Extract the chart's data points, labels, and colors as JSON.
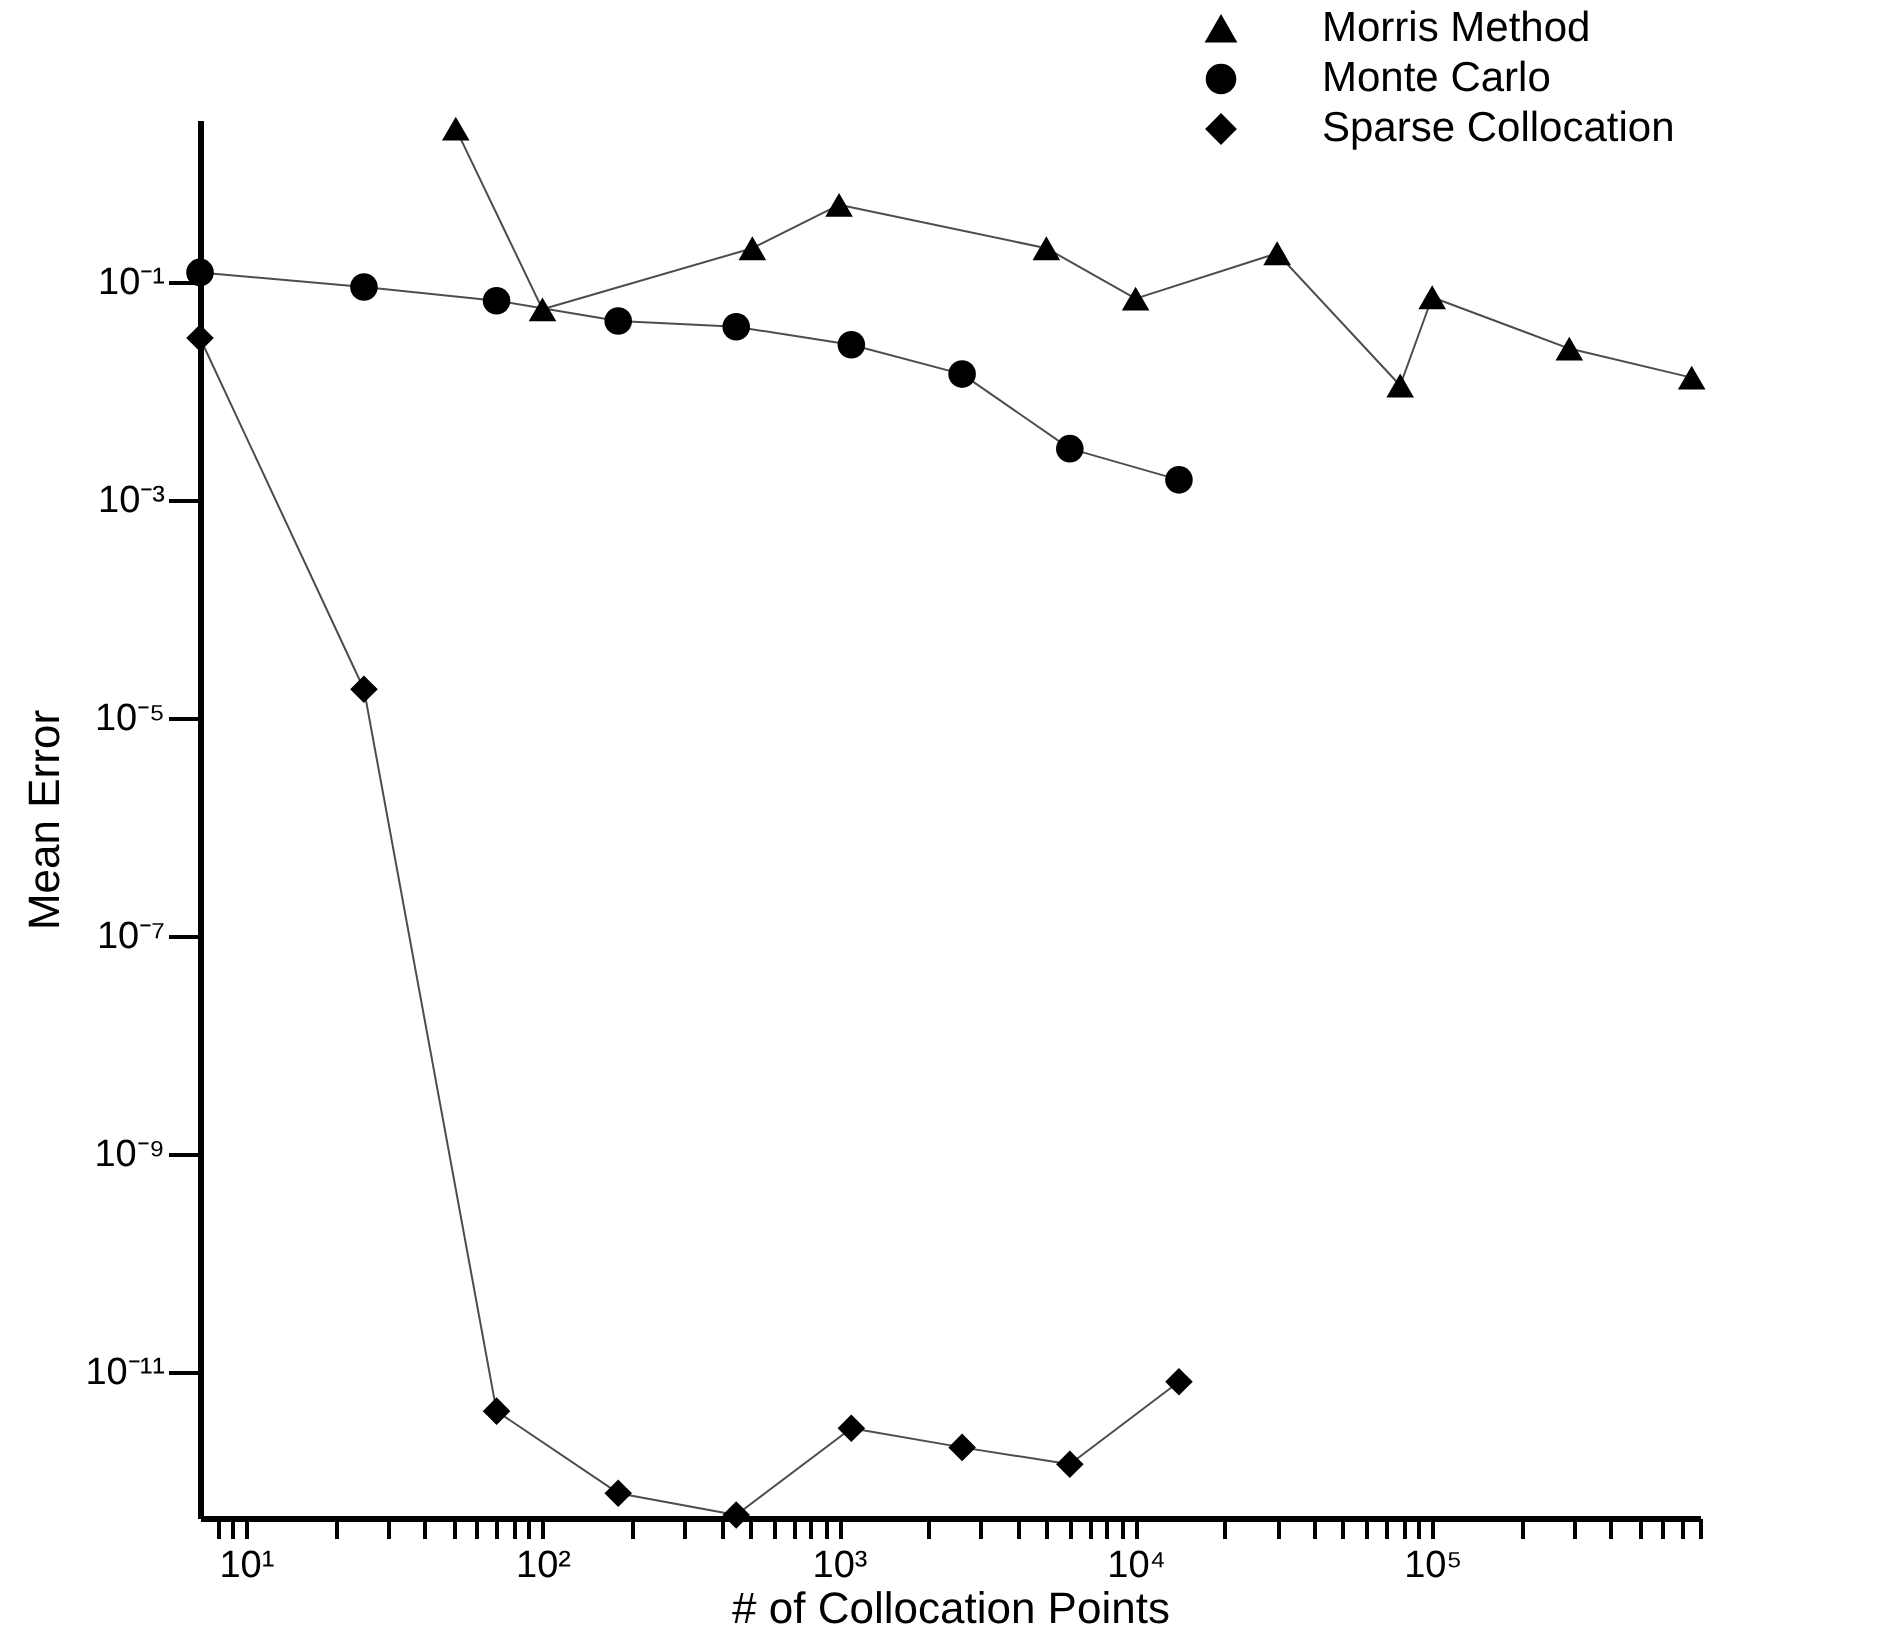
{
  "chart_data": {
    "type": "line",
    "xlabel": "# of Collocation Points",
    "ylabel": "Mean Error",
    "log": "xy",
    "legend": "top right",
    "grid": false,
    "line_style": "solid",
    "xlim": [
      7,
      800000
    ],
    "ylim": [
      4.5e-13,
      3
    ],
    "xticks": [
      {
        "value": 8,
        "label": null
      },
      {
        "value": 9,
        "label": null
      },
      {
        "value": 10,
        "label": "10¹"
      },
      {
        "value": 20,
        "label": null
      },
      {
        "value": 30,
        "label": null
      },
      {
        "value": 40,
        "label": null
      },
      {
        "value": 50,
        "label": null
      },
      {
        "value": 60,
        "label": null
      },
      {
        "value": 70,
        "label": null
      },
      {
        "value": 80,
        "label": null
      },
      {
        "value": 90,
        "label": null
      },
      {
        "value": 100,
        "label": "10²"
      },
      {
        "value": 200,
        "label": null
      },
      {
        "value": 300,
        "label": null
      },
      {
        "value": 400,
        "label": null
      },
      {
        "value": 500,
        "label": null
      },
      {
        "value": 600,
        "label": null
      },
      {
        "value": 700,
        "label": null
      },
      {
        "value": 800,
        "label": null
      },
      {
        "value": 900,
        "label": null
      },
      {
        "value": 1000,
        "label": "10³"
      },
      {
        "value": 2000,
        "label": null
      },
      {
        "value": 3000,
        "label": null
      },
      {
        "value": 4000,
        "label": null
      },
      {
        "value": 5000,
        "label": null
      },
      {
        "value": 6000,
        "label": null
      },
      {
        "value": 7000,
        "label": null
      },
      {
        "value": 8000,
        "label": null
      },
      {
        "value": 9000,
        "label": null
      },
      {
        "value": 10000,
        "label": "10⁴"
      },
      {
        "value": 20000,
        "label": null
      },
      {
        "value": 30000,
        "label": null
      },
      {
        "value": 40000,
        "label": null
      },
      {
        "value": 50000,
        "label": null
      },
      {
        "value": 60000,
        "label": null
      },
      {
        "value": 70000,
        "label": null
      },
      {
        "value": 80000,
        "label": null
      },
      {
        "value": 90000,
        "label": null
      },
      {
        "value": 100000,
        "label": "10⁵"
      },
      {
        "value": 200000,
        "label": null
      },
      {
        "value": 300000,
        "label": null
      },
      {
        "value": 400000,
        "label": null
      },
      {
        "value": 500000,
        "label": null
      },
      {
        "value": 600000,
        "label": null
      },
      {
        "value": 700000,
        "label": null
      },
      {
        "value": 800000,
        "label": null
      }
    ],
    "yticks": [
      {
        "value": 0.1,
        "label": "10⁻¹"
      },
      {
        "value": 0.001,
        "label": "10⁻³"
      },
      {
        "value": 1e-05,
        "label": "10⁻⁵"
      },
      {
        "value": 1e-07,
        "label": "10⁻⁷"
      },
      {
        "value": 1e-09,
        "label": "10⁻⁹"
      },
      {
        "value": 1e-11,
        "label": "10⁻¹¹"
      }
    ],
    "series": [
      {
        "name": "Morris Method",
        "color": "#000000",
        "marker": "triangle",
        "x": [
          51,
          100,
          510,
          1000,
          5000,
          10000,
          30000,
          78000,
          100000,
          290000,
          750000
        ],
        "values": [
          2.5,
          0.055,
          0.2,
          0.5,
          0.2,
          0.069,
          0.18,
          0.011,
          0.071,
          0.024,
          0.013
        ]
      },
      {
        "name": "Monte Carlo",
        "color": "#000000",
        "marker": "circle",
        "x": [
          7,
          25,
          70,
          180,
          450,
          1100,
          2600,
          6000,
          14000
        ],
        "values": [
          0.12,
          0.088,
          0.066,
          0.043,
          0.038,
          0.026,
          0.014,
          0.0029,
          0.0015
        ]
      },
      {
        "name": "Sparse Collocation",
        "color": "#000000",
        "marker": "diamond",
        "x": [
          7,
          25,
          70,
          180,
          450,
          1100,
          2600,
          6000,
          14000
        ],
        "values": [
          0.03,
          1.8e-05,
          4.3e-12,
          7.6e-13,
          4.8e-13,
          3e-12,
          2e-12,
          1.4e-12,
          8e-12
        ]
      }
    ]
  }
}
